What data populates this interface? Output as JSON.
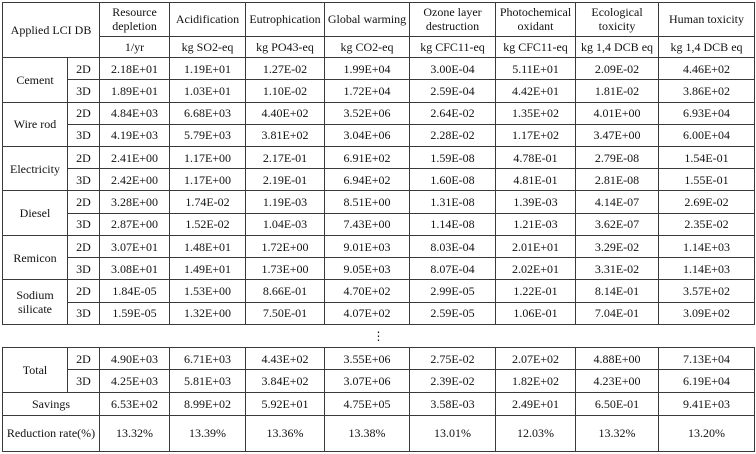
{
  "header": {
    "corner": "Applied LCI DB",
    "categories": [
      {
        "name": "Resource depletion",
        "unit": "1/yr"
      },
      {
        "name": "Acidification",
        "unit": "kg SO2-eq"
      },
      {
        "name": "Eutrophication",
        "unit": "kg PO43-eq"
      },
      {
        "name": "Global warming",
        "unit": "kg CO2-eq"
      },
      {
        "name": "Ozone layer destruction",
        "unit": "kg CFC11-eq"
      },
      {
        "name": "Photochemical oxidant",
        "unit": "kg CFC11-eq"
      },
      {
        "name": "Ecological toxicity",
        "unit": "kg 1,4 DCB eq"
      },
      {
        "name": "Human toxicity",
        "unit": "kg 1,4 DCB eq"
      }
    ]
  },
  "groups": [
    {
      "name": "Cement",
      "rows": [
        {
          "dim": "2D",
          "values": [
            "2.18E+01",
            "1.19E+01",
            "1.27E-02",
            "1.99E+04",
            "3.00E-04",
            "5.11E+01",
            "2.09E-02",
            "4.46E+02"
          ]
        },
        {
          "dim": "3D",
          "values": [
            "1.89E+01",
            "1.03E+01",
            "1.10E-02",
            "1.72E+04",
            "2.59E-04",
            "4.42E+01",
            "1.81E-02",
            "3.86E+02"
          ]
        }
      ]
    },
    {
      "name": "Wire rod",
      "rows": [
        {
          "dim": "2D",
          "values": [
            "4.84E+03",
            "6.68E+03",
            "4.40E+02",
            "3.52E+06",
            "2.64E-02",
            "1.35E+02",
            "4.01E+00",
            "6.93E+04"
          ]
        },
        {
          "dim": "3D",
          "values": [
            "4.19E+03",
            "5.79E+03",
            "3.81E+02",
            "3.04E+06",
            "2.28E-02",
            "1.17E+02",
            "3.47E+00",
            "6.00E+04"
          ]
        }
      ]
    },
    {
      "name": "Electricity",
      "rows": [
        {
          "dim": "2D",
          "values": [
            "2.41E+00",
            "1.17E+00",
            "2.17E-01",
            "6.91E+02",
            "1.59E-08",
            "4.78E-01",
            "2.79E-08",
            "1.54E-01"
          ]
        },
        {
          "dim": "3D",
          "values": [
            "2.42E+00",
            "1.17E+00",
            "2.19E-01",
            "6.94E+02",
            "1.60E-08",
            "4.81E-01",
            "2.81E-08",
            "1.55E-01"
          ]
        }
      ]
    },
    {
      "name": "Diesel",
      "rows": [
        {
          "dim": "2D",
          "values": [
            "3.28E+00",
            "1.74E-02",
            "1.19E-03",
            "8.51E+00",
            "1.31E-08",
            "1.39E-03",
            "4.14E-07",
            "2.69E-02"
          ]
        },
        {
          "dim": "3D",
          "values": [
            "2.87E+00",
            "1.52E-02",
            "1.04E-03",
            "7.43E+00",
            "1.14E-08",
            "1.21E-03",
            "3.62E-07",
            "2.35E-02"
          ]
        }
      ]
    },
    {
      "name": "Remicon",
      "rows": [
        {
          "dim": "2D",
          "values": [
            "3.07E+01",
            "1.48E+01",
            "1.72E+00",
            "9.01E+03",
            "8.03E-04",
            "2.01E+01",
            "3.29E-02",
            "1.14E+03"
          ]
        },
        {
          "dim": "3D",
          "values": [
            "3.08E+01",
            "1.49E+01",
            "1.73E+00",
            "9.05E+03",
            "8.07E-04",
            "2.02E+01",
            "3.31E-02",
            "1.14E+03"
          ]
        }
      ]
    },
    {
      "name": "Sodium silicate",
      "rows": [
        {
          "dim": "2D",
          "values": [
            "1.84E-05",
            "1.53E+00",
            "8.66E-01",
            "4.70E+02",
            "2.99E-05",
            "1.22E-01",
            "8.14E-01",
            "3.57E+02"
          ]
        },
        {
          "dim": "3D",
          "values": [
            "1.59E-05",
            "1.32E+00",
            "7.50E-01",
            "4.07E+02",
            "2.59E-05",
            "1.06E-01",
            "7.04E-01",
            "3.09E+02"
          ]
        }
      ]
    }
  ],
  "ellipsis": "⋮",
  "total": {
    "name": "Total",
    "rows": [
      {
        "dim": "2D",
        "values": [
          "4.90E+03",
          "6.71E+03",
          "4.43E+02",
          "3.55E+06",
          "2.75E-02",
          "2.07E+02",
          "4.88E+00",
          "7.13E+04"
        ]
      },
      {
        "dim": "3D",
        "values": [
          "4.25E+03",
          "5.81E+03",
          "3.84E+02",
          "3.07E+06",
          "2.39E-02",
          "1.82E+02",
          "4.23E+00",
          "6.19E+04"
        ]
      }
    ]
  },
  "savings": {
    "label": "Savings",
    "values": [
      "6.53E+02",
      "8.99E+02",
      "5.92E+01",
      "4.75E+05",
      "3.58E-03",
      "2.49E+01",
      "6.50E-01",
      "9.41E+03"
    ]
  },
  "reduction": {
    "label": "Reduction rate(%)",
    "values": [
      "13.32%",
      "13.39%",
      "13.36%",
      "13.38%",
      "13.01%",
      "12.03%",
      "13.32%",
      "13.20%"
    ]
  }
}
